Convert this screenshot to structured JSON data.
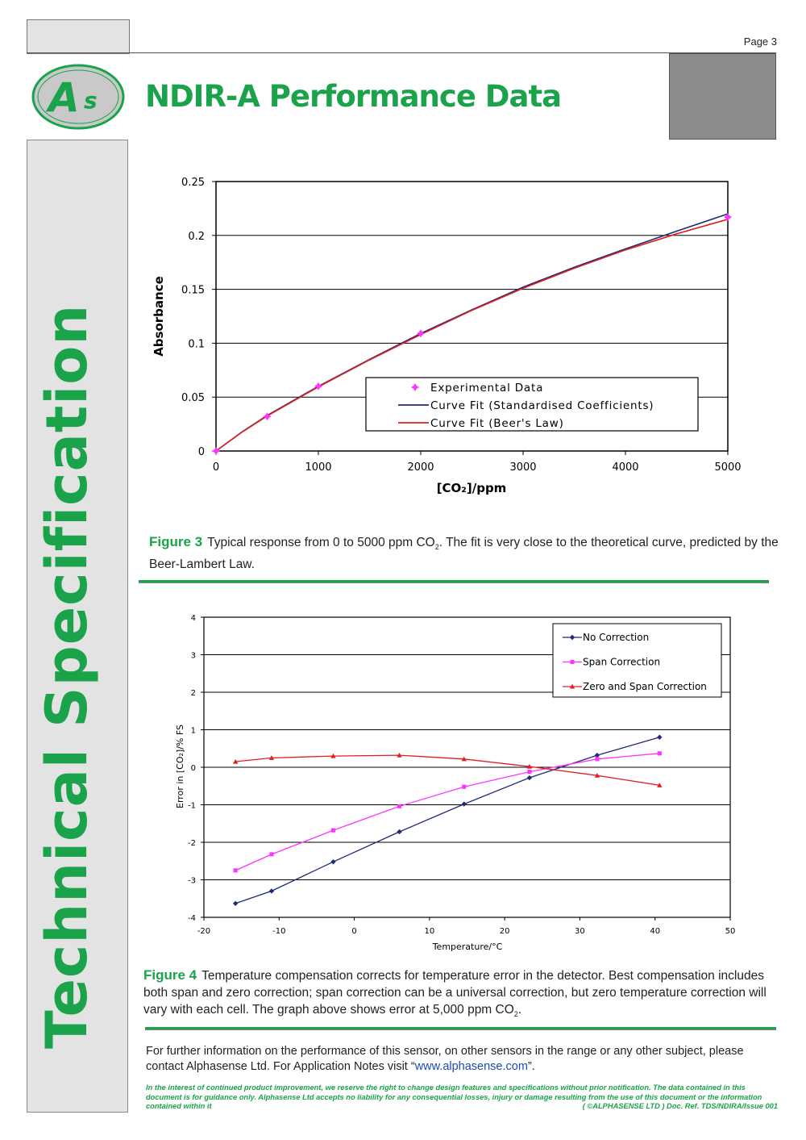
{
  "page": {
    "page_number": "Page 3",
    "title": "NDIR-A  Performance Data",
    "side_title": "Technical Specification",
    "logo_text": "As"
  },
  "colors": {
    "brand_green": "#1aa34a",
    "navy": "#1f2a78",
    "magenta": "#ff33ff",
    "red": "#e02020"
  },
  "figure3": {
    "label": "Figure 3",
    "caption_before_sub": "Typical response from 0 to 5000 ppm CO",
    "sub": "2",
    "caption_after_sub": ". The fit is very close to the theoretical curve, predicted by the Beer-Lambert Law."
  },
  "figure4": {
    "label": "Figure 4",
    "caption_before_sub": "Temperature compensation corrects for temperature error in the detector.  Best compensation includes both span and zero correction; span correction can be a universal correction, but zero temperature correction will vary with each cell.  The graph above shows error at 5,000 ppm CO",
    "sub": "2",
    "caption_after_sub": "."
  },
  "footer": {
    "further_text": "For further information on the performance of this sensor, on other sensors in the range or any other subject, please contact Alphasense Ltd. For Application Notes visit “",
    "link": "www.alphasense.com",
    "further_end": "”.",
    "disclaimer": "In the interest of continued product improvement, we reserve the right to change design features and specifications without prior notification. The data contained in this document is for guidance only. Alphasense Ltd accepts no liability for any consequential losses, injury or damage resulting from the use of this document or the information contained within it",
    "doc_ref": "( ©ALPHASENSE LTD ) Doc. Ref.  TDS/NDIRA/Issue 001"
  },
  "chart_data": [
    {
      "type": "line",
      "xlabel": "[CO₂]/ppm",
      "ylabel": "Absorbance",
      "xlim": [
        0,
        5000
      ],
      "ylim": [
        0,
        0.25
      ],
      "x_ticks": [
        "0",
        "1000",
        "2000",
        "3000",
        "4000",
        "5000"
      ],
      "y_ticks": [
        "0",
        "0.05",
        "0.1",
        "0.15",
        "0.2",
        "0.25"
      ],
      "grid": "horizontal",
      "legend_position": "bottom-right",
      "series": [
        {
          "name": "Experimental Data",
          "style": "markers",
          "color": "#ff33ff",
          "x": [
            0,
            500,
            1000,
            2000,
            5000
          ],
          "y": [
            0,
            0.032,
            0.06,
            0.109,
            0.217
          ]
        },
        {
          "name": "Curve Fit (Standardised Coefficients)",
          "style": "line",
          "color": "#1f2a78",
          "x": [
            0,
            250,
            500,
            1000,
            1500,
            2000,
            2500,
            3000,
            3500,
            4000,
            4500,
            5000
          ],
          "y": [
            0,
            0.0175,
            0.033,
            0.06,
            0.085,
            0.109,
            0.131,
            0.152,
            0.1705,
            0.1875,
            0.204,
            0.22
          ]
        },
        {
          "name": "Curve Fit (Beer's Law)",
          "style": "line",
          "color": "#e02020",
          "x": [
            0,
            250,
            500,
            1000,
            1500,
            2000,
            2500,
            3000,
            3500,
            4000,
            4500,
            5000
          ],
          "y": [
            0,
            0.0172,
            0.0325,
            0.0595,
            0.0845,
            0.108,
            0.1305,
            0.151,
            0.1695,
            0.1865,
            0.2015,
            0.215
          ]
        }
      ]
    },
    {
      "type": "line",
      "xlabel": "Temperature/°C",
      "ylabel": "Error in [CO₂]/% FS",
      "xlim": [
        -20,
        50
      ],
      "ylim": [
        -4,
        4
      ],
      "x_ticks": [
        "-20",
        "-10",
        "0",
        "10",
        "20",
        "30",
        "40",
        "50"
      ],
      "y_ticks": [
        "-4",
        "-3",
        "-2",
        "-1",
        "0",
        "1",
        "2",
        "3",
        "4"
      ],
      "grid": "horizontal",
      "legend_position": "top-right",
      "series": [
        {
          "name": "No Correction",
          "marker": "diamond",
          "color": "#1f2a78",
          "x": [
            -15.8,
            -11,
            -2.8,
            6,
            14.6,
            23.3,
            32.3,
            40.6
          ],
          "y": [
            -3.63,
            -3.3,
            -2.52,
            -1.72,
            -0.98,
            -0.28,
            0.32,
            0.8
          ]
        },
        {
          "name": "Span Correction",
          "marker": "square",
          "color": "#ff33ff",
          "x": [
            -15.8,
            -11,
            -2.8,
            6,
            14.6,
            23.3,
            32.3,
            40.6
          ],
          "y": [
            -2.75,
            -2.32,
            -1.68,
            -1.04,
            -0.52,
            -0.12,
            0.22,
            0.37
          ]
        },
        {
          "name": "Zero and Span Correction",
          "marker": "triangle",
          "color": "#e02020",
          "x": [
            -15.8,
            -11,
            -2.8,
            6,
            14.6,
            23.3,
            32.3,
            40.6
          ],
          "y": [
            0.15,
            0.25,
            0.3,
            0.32,
            0.22,
            0.02,
            -0.22,
            -0.48
          ]
        }
      ]
    }
  ]
}
